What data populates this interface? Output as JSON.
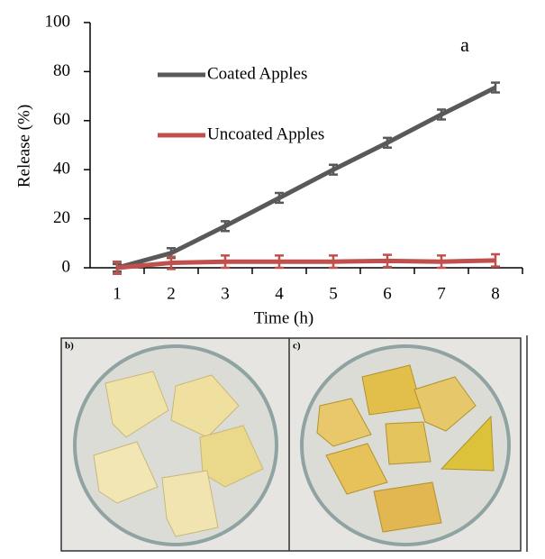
{
  "chart_data": {
    "type": "line",
    "categories": [
      "1",
      "2",
      "3",
      "4",
      "5",
      "6",
      "7",
      "8"
    ],
    "x_label": "Time (h)",
    "y_label": "Release (%)",
    "annotation": "a",
    "ylim": [
      0,
      100
    ],
    "yticks": [
      0,
      20,
      40,
      60,
      80,
      100
    ],
    "series": [
      {
        "name": "Coated Apples",
        "color": "#595959",
        "values": [
          0,
          6,
          17,
          28.5,
          40,
          51,
          62.5,
          73.5
        ],
        "errors": [
          1.5,
          2,
          2,
          2,
          2,
          2,
          2,
          2
        ]
      },
      {
        "name": "Uncoated Apples",
        "color": "#c0504d",
        "values": [
          0,
          2,
          2.5,
          2.5,
          2.5,
          2.8,
          2.5,
          3
        ],
        "errors": [
          2.5,
          2.5,
          2.5,
          2.5,
          2.5,
          2.5,
          2.5,
          2.5
        ]
      }
    ]
  },
  "photos": {
    "labels": [
      "b)",
      "c)"
    ]
  }
}
